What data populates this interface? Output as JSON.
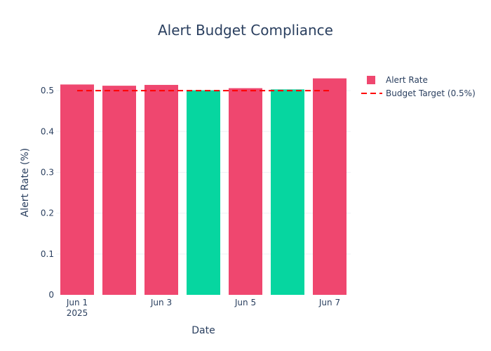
{
  "chart_data": {
    "type": "bar",
    "title": "Alert Budget Compliance",
    "xlabel": "Date",
    "ylabel": "Alert Rate (%)",
    "x_dates": [
      "2025-06-01",
      "2025-06-02",
      "2025-06-03",
      "2025-06-04",
      "2025-06-05",
      "2025-06-06",
      "2025-06-07"
    ],
    "x_tick_labels": [
      "Jun 1",
      "Jun 3",
      "Jun 5",
      "Jun 7"
    ],
    "x_tick_sublabel": "2025",
    "y_ticks": [
      "0",
      "0.1",
      "0.2",
      "0.3",
      "0.4",
      "0.5"
    ],
    "ylim": [
      0,
      0.55
    ],
    "series": [
      {
        "name": "Alert Rate",
        "kind": "bar",
        "values": [
          0.515,
          0.512,
          0.514,
          0.501,
          0.506,
          0.503,
          0.53
        ],
        "colors": [
          "#EF476F",
          "#EF476F",
          "#EF476F",
          "#06D6A0",
          "#EF476F",
          "#06D6A0",
          "#EF476F"
        ]
      },
      {
        "name": "Budget Target (0.5%)",
        "kind": "line",
        "style": "dashed",
        "color": "#FF0000",
        "value": 0.5
      }
    ],
    "legend_placement": "top-right",
    "grid": true
  }
}
